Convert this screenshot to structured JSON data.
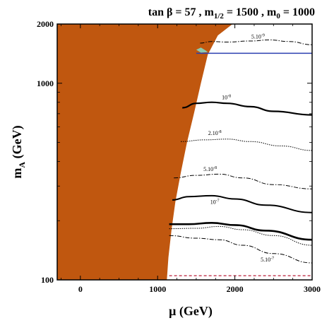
{
  "chart_data": {
    "type": "contour",
    "title": "tan β = 57 ,  m1/2 = 1500 ,  m0 = 1000",
    "title_parts": {
      "tanb": "tan β = 57 ,  m",
      "mhalf_sub": "1/2",
      "mhalf_val": " = 1500 ,  m",
      "m0_sub": "0",
      "m0_val": " = 1000"
    },
    "xlabel": "μ (GeV)",
    "ylabel": {
      "main": "m",
      "sub": "A",
      "rest": " (GeV)"
    },
    "xlim": [
      -300,
      3000
    ],
    "ylim": [
      100,
      2000
    ],
    "yscale": "log",
    "xticks": [
      0,
      1000,
      2000,
      3000
    ],
    "xtick_labels": [
      "0",
      "1000",
      "2000",
      "3000"
    ],
    "yticks": [
      100,
      1000,
      2000
    ],
    "ytick_labels": [
      "100",
      "1000",
      "2000"
    ],
    "excluded_region": {
      "color": "#c0570f",
      "boundary": [
        [
          1120,
          100
        ],
        [
          1140,
          130
        ],
        [
          1180,
          180
        ],
        [
          1230,
          250
        ],
        [
          1300,
          350
        ],
        [
          1380,
          500
        ],
        [
          1470,
          700
        ],
        [
          1560,
          1000
        ],
        [
          1650,
          1400
        ],
        [
          1780,
          1750
        ],
        [
          1970,
          2000
        ]
      ]
    },
    "contours": [
      {
        "label": "5.10-9",
        "label_text": "5.10",
        "label_exp": "-9",
        "style": "dashdot",
        "width": 1,
        "points": [
          [
            1550,
            1600
          ],
          [
            1700,
            1630
          ],
          [
            1900,
            1620
          ],
          [
            2200,
            1640
          ],
          [
            2450,
            1660
          ],
          [
            2700,
            1630
          ],
          [
            3000,
            1570
          ]
        ],
        "label_at": [
          2300,
          1690
        ]
      },
      {
        "label": "10-8",
        "label_text": "10",
        "label_exp": "-8",
        "style": "solid",
        "width": 2.2,
        "points": [
          [
            1320,
            750
          ],
          [
            1500,
            790
          ],
          [
            1700,
            800
          ],
          [
            1900,
            790
          ],
          [
            2200,
            760
          ],
          [
            2500,
            720
          ],
          [
            3000,
            690
          ]
        ],
        "label_at": [
          1890,
          830
        ]
      },
      {
        "label": "2.10-8",
        "label_text": "2.10",
        "label_exp": "-8",
        "style": "dotted",
        "width": 1,
        "points": [
          [
            1300,
            505
          ],
          [
            1600,
            515
          ],
          [
            1900,
            520
          ],
          [
            2200,
            505
          ],
          [
            2600,
            480
          ],
          [
            3000,
            455
          ]
        ],
        "label_at": [
          1740,
          545
        ]
      },
      {
        "label": "5.10-8",
        "label_text": "5.10",
        "label_exp": "-8",
        "style": "dashdot",
        "width": 1,
        "points": [
          [
            1210,
            330
          ],
          [
            1500,
            340
          ],
          [
            1800,
            345
          ],
          [
            2100,
            330
          ],
          [
            2500,
            305
          ],
          [
            3000,
            290
          ]
        ],
        "label_at": [
          1680,
          358
        ]
      },
      {
        "label": "10-7",
        "label_text": "10",
        "label_exp": "-7",
        "style": "solid",
        "width": 2,
        "points": [
          [
            1190,
            255
          ],
          [
            1400,
            265
          ],
          [
            1700,
            268
          ],
          [
            2000,
            258
          ],
          [
            2400,
            240
          ],
          [
            3000,
            220
          ]
        ],
        "label_at": [
          1740,
          243
        ]
      },
      {
        "label": "",
        "label_text": "",
        "label_exp": "",
        "style": "solid",
        "width": 2.6,
        "points": [
          [
            1150,
            192
          ],
          [
            1400,
            192
          ],
          [
            1700,
            195
          ],
          [
            2000,
            190
          ],
          [
            2400,
            178
          ],
          [
            3000,
            160
          ]
        ],
        "label_at": null
      },
      {
        "label": "",
        "label_text": "",
        "label_exp": "",
        "style": "dotted",
        "width": 1,
        "points": [
          [
            1150,
            182
          ],
          [
            1500,
            183
          ],
          [
            1800,
            187
          ],
          [
            2100,
            180
          ],
          [
            2500,
            168
          ],
          [
            3000,
            150
          ]
        ],
        "label_at": null
      },
      {
        "label": "5.10-7",
        "label_text": "5.10",
        "label_exp": "-7",
        "style": "dashdot",
        "width": 1,
        "points": [
          [
            1150,
            168
          ],
          [
            1500,
            163
          ],
          [
            1800,
            160
          ],
          [
            2100,
            150
          ],
          [
            2500,
            136
          ],
          [
            3000,
            122
          ]
        ],
        "label_at": [
          2420,
          124
        ]
      }
    ],
    "reference_lines": [
      {
        "y": 1420,
        "x_from": 1500,
        "x_to": 3000,
        "color": "#2b3fb0",
        "style": "solid"
      },
      {
        "y": 105,
        "x_from": 1150,
        "x_to": 3000,
        "color": "#c0304a",
        "style": "dashed"
      }
    ],
    "cyan_region": {
      "color": "#7fe8d8",
      "points": [
        [
          1500,
          1480
        ],
        [
          1560,
          1520
        ],
        [
          1620,
          1470
        ],
        [
          1650,
          1440
        ],
        [
          1560,
          1430
        ]
      ]
    }
  }
}
